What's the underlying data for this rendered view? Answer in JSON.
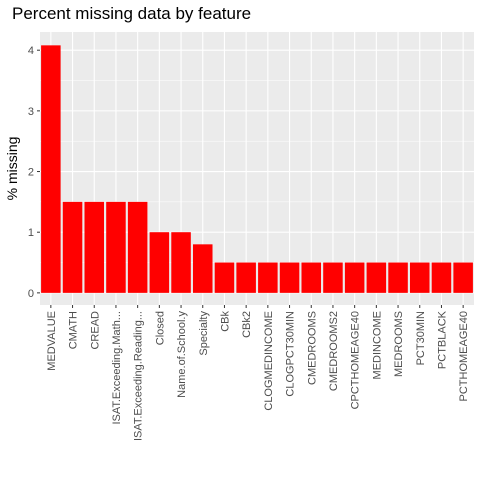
{
  "chart_data": {
    "type": "bar",
    "title": "Percent missing data by feature",
    "xlabel": "",
    "ylabel": "% missing",
    "ylim": [
      -0.2,
      4.3
    ],
    "yticks": [
      0,
      1,
      2,
      3,
      4
    ],
    "bar_color": "#ff0000",
    "panel_color": "#ebebeb",
    "grid_color": "#ffffff",
    "grid": true,
    "legend": "none",
    "categories": [
      "MEDVALUE",
      "CMATH",
      "CREAD",
      "ISAT.Exceeding.Math...",
      "ISAT.Exceeding.Reading...",
      "Closed",
      "Name.of.School.y",
      "Specialty",
      "CBk",
      "CBk2",
      "CLOGMEDINCOME",
      "CLOGPCT30MIN",
      "CMEDROOMS",
      "CMEDROOMS2",
      "CPCTHOMEAGE40",
      "MEDINCOME",
      "MEDROOMS",
      "PCT30MIN",
      "PCTBLACK",
      "PCTHOMEAGE40"
    ],
    "values": [
      4.08,
      1.5,
      1.5,
      1.5,
      1.5,
      1.0,
      1.0,
      0.8,
      0.5,
      0.5,
      0.5,
      0.5,
      0.5,
      0.5,
      0.5,
      0.5,
      0.5,
      0.5,
      0.5,
      0.5
    ]
  }
}
